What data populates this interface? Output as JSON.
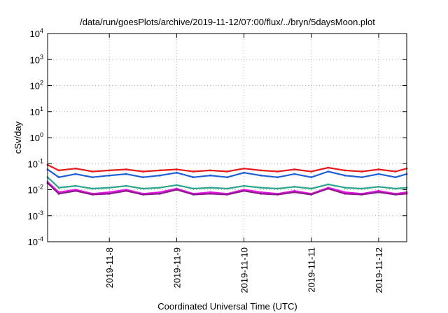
{
  "chart_data": {
    "type": "line",
    "title": "/data/run/goesPlots/archive/2019-11-12/07:00/flux/../bryn/5daysMoon.plot",
    "xlabel": "Coordinated Universal Time (UTC)",
    "ylabel": "cSv/day",
    "yscale": "log",
    "ylim": [
      0.0001,
      10000
    ],
    "xlim": [
      "2019-11-07 02:00",
      "2019-11-12 10:00"
    ],
    "grid": true,
    "legend": "none",
    "yticks": [
      {
        "base": "10",
        "exp": "-4",
        "value": 0.0001
      },
      {
        "base": "10",
        "exp": "-3",
        "value": 0.001
      },
      {
        "base": "10",
        "exp": "-2",
        "value": 0.01
      },
      {
        "base": "10",
        "exp": "-1",
        "value": 0.1
      },
      {
        "base": "10",
        "exp": "0",
        "value": 1
      },
      {
        "base": "10",
        "exp": "1",
        "value": 10
      },
      {
        "base": "10",
        "exp": "2",
        "value": 100
      },
      {
        "base": "10",
        "exp": "3",
        "value": 1000
      },
      {
        "base": "10",
        "exp": "4",
        "value": 10000
      }
    ],
    "xticks": [
      {
        "label": "2019-11-8",
        "value": "2019-11-08 00:00"
      },
      {
        "label": "2019-11-9",
        "value": "2019-11-09 00:00"
      },
      {
        "label": "2019-11-10",
        "value": "2019-11-10 00:00"
      },
      {
        "label": "2019-11-11",
        "value": "2019-11-11 00:00"
      },
      {
        "label": "2019-11-12",
        "value": "2019-11-12 00:00"
      }
    ],
    "series": [
      {
        "color": "#e41a1c",
        "x": [
          "2019-11-07 02:00",
          "2019-11-07 06:00",
          "2019-11-07 12:00",
          "2019-11-07 18:00",
          "2019-11-08 00:00",
          "2019-11-08 06:00",
          "2019-11-08 12:00",
          "2019-11-08 18:00",
          "2019-11-09 00:00",
          "2019-11-09 06:00",
          "2019-11-09 12:00",
          "2019-11-09 18:00",
          "2019-11-10 00:00",
          "2019-11-10 06:00",
          "2019-11-10 12:00",
          "2019-11-10 18:00",
          "2019-11-11 00:00",
          "2019-11-11 06:00",
          "2019-11-11 12:00",
          "2019-11-11 18:00",
          "2019-11-12 00:00",
          "2019-11-12 06:00",
          "2019-11-12 10:00"
        ],
        "values": [
          0.09,
          0.055,
          0.065,
          0.05,
          0.055,
          0.06,
          0.05,
          0.055,
          0.06,
          0.05,
          0.055,
          0.05,
          0.065,
          0.055,
          0.05,
          0.06,
          0.05,
          0.07,
          0.055,
          0.05,
          0.06,
          0.05,
          0.065
        ]
      },
      {
        "color": "#1f5fd6",
        "x": [
          "2019-11-07 02:00",
          "2019-11-07 06:00",
          "2019-11-07 12:00",
          "2019-11-07 18:00",
          "2019-11-08 00:00",
          "2019-11-08 06:00",
          "2019-11-08 12:00",
          "2019-11-08 18:00",
          "2019-11-09 00:00",
          "2019-11-09 06:00",
          "2019-11-09 12:00",
          "2019-11-09 18:00",
          "2019-11-10 00:00",
          "2019-11-10 06:00",
          "2019-11-10 12:00",
          "2019-11-10 18:00",
          "2019-11-11 00:00",
          "2019-11-11 06:00",
          "2019-11-11 12:00",
          "2019-11-11 18:00",
          "2019-11-12 00:00",
          "2019-11-12 06:00",
          "2019-11-12 10:00"
        ],
        "values": [
          0.06,
          0.03,
          0.04,
          0.03,
          0.035,
          0.04,
          0.03,
          0.035,
          0.045,
          0.03,
          0.035,
          0.03,
          0.045,
          0.035,
          0.03,
          0.04,
          0.03,
          0.05,
          0.035,
          0.03,
          0.04,
          0.03,
          0.04
        ]
      },
      {
        "color": "#2ca58d",
        "x": [
          "2019-11-07 02:00",
          "2019-11-07 06:00",
          "2019-11-07 12:00",
          "2019-11-07 18:00",
          "2019-11-08 00:00",
          "2019-11-08 06:00",
          "2019-11-08 12:00",
          "2019-11-08 18:00",
          "2019-11-09 00:00",
          "2019-11-09 06:00",
          "2019-11-09 12:00",
          "2019-11-09 18:00",
          "2019-11-10 00:00",
          "2019-11-10 06:00",
          "2019-11-10 12:00",
          "2019-11-10 18:00",
          "2019-11-11 00:00",
          "2019-11-11 06:00",
          "2019-11-11 12:00",
          "2019-11-11 18:00",
          "2019-11-12 00:00",
          "2019-11-12 06:00",
          "2019-11-12 10:00"
        ],
        "values": [
          0.03,
          0.012,
          0.014,
          0.011,
          0.012,
          0.014,
          0.011,
          0.012,
          0.015,
          0.011,
          0.012,
          0.011,
          0.014,
          0.012,
          0.011,
          0.013,
          0.011,
          0.016,
          0.012,
          0.011,
          0.013,
          0.011,
          0.012
        ]
      },
      {
        "color": "#e619e6",
        "x": [
          "2019-11-07 02:00",
          "2019-11-07 06:00",
          "2019-11-07 12:00",
          "2019-11-07 18:00",
          "2019-11-08 00:00",
          "2019-11-08 06:00",
          "2019-11-08 12:00",
          "2019-11-08 18:00",
          "2019-11-09 00:00",
          "2019-11-09 06:00",
          "2019-11-09 12:00",
          "2019-11-09 18:00",
          "2019-11-10 00:00",
          "2019-11-10 06:00",
          "2019-11-10 12:00",
          "2019-11-10 18:00",
          "2019-11-11 00:00",
          "2019-11-11 06:00",
          "2019-11-11 12:00",
          "2019-11-11 18:00",
          "2019-11-12 00:00",
          "2019-11-12 06:00",
          "2019-11-12 10:00"
        ],
        "values": [
          0.02,
          0.008,
          0.01,
          0.007,
          0.008,
          0.01,
          0.007,
          0.008,
          0.011,
          0.007,
          0.008,
          0.007,
          0.01,
          0.008,
          0.007,
          0.009,
          0.007,
          0.012,
          0.008,
          0.007,
          0.009,
          0.007,
          0.008
        ]
      },
      {
        "color": "#8b1a8b",
        "x": [
          "2019-11-07 02:00",
          "2019-11-07 06:00",
          "2019-11-07 12:00",
          "2019-11-07 18:00",
          "2019-11-08 00:00",
          "2019-11-08 06:00",
          "2019-11-08 12:00",
          "2019-11-08 18:00",
          "2019-11-09 00:00",
          "2019-11-09 06:00",
          "2019-11-09 12:00",
          "2019-11-09 18:00",
          "2019-11-10 00:00",
          "2019-11-10 06:00",
          "2019-11-10 12:00",
          "2019-11-10 18:00",
          "2019-11-11 00:00",
          "2019-11-11 06:00",
          "2019-11-11 12:00",
          "2019-11-11 18:00",
          "2019-11-12 00:00",
          "2019-11-12 06:00",
          "2019-11-12 10:00"
        ],
        "values": [
          0.018,
          0.007,
          0.009,
          0.0065,
          0.007,
          0.009,
          0.0065,
          0.007,
          0.01,
          0.0065,
          0.007,
          0.0065,
          0.009,
          0.007,
          0.0065,
          0.008,
          0.0065,
          0.011,
          0.007,
          0.0065,
          0.008,
          0.0065,
          0.007
        ]
      }
    ]
  }
}
